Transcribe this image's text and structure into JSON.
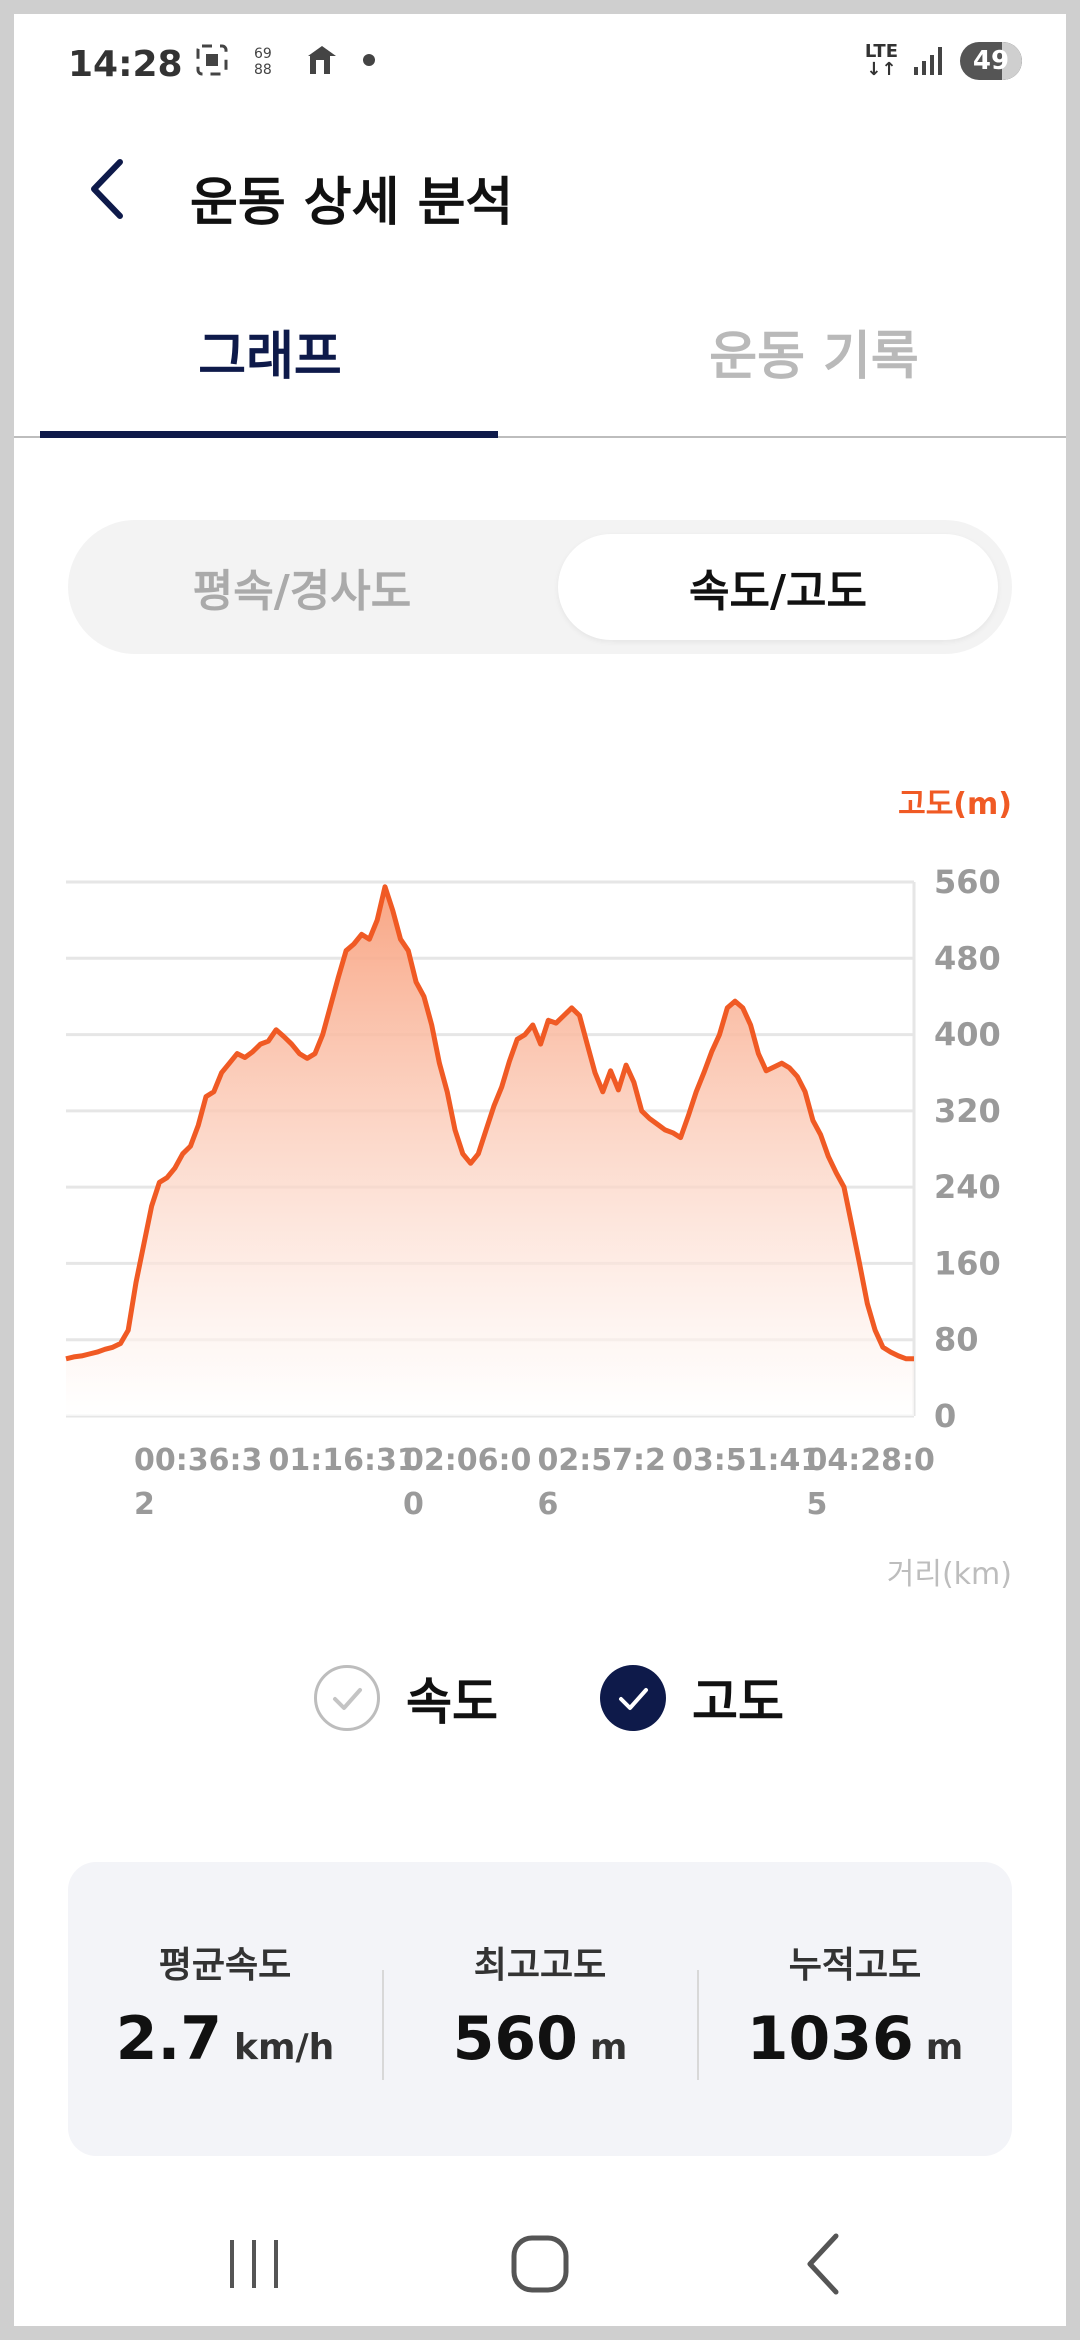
{
  "status_bar": {
    "time": "14:28",
    "network": "LTE",
    "battery": "49"
  },
  "header": {
    "title": "운동 상세 분석"
  },
  "tabs": [
    {
      "label": "그래프",
      "active": true
    },
    {
      "label": "운동 기록",
      "active": false
    }
  ],
  "segment": {
    "options": [
      "평속/경사도",
      "속도/고도"
    ],
    "selected": "속도/고도"
  },
  "chart_data": {
    "type": "area",
    "series": [
      {
        "name": "고도",
        "color": "#f05a24",
        "values": [
          60,
          62,
          63,
          65,
          67,
          70,
          72,
          76,
          90,
          140,
          180,
          220,
          245,
          250,
          260,
          275,
          283,
          305,
          335,
          340,
          360,
          370,
          380,
          376,
          382,
          390,
          393,
          405,
          398,
          390,
          380,
          375,
          380,
          400,
          430,
          460,
          488,
          495,
          505,
          500,
          520,
          555,
          530,
          500,
          488,
          455,
          440,
          410,
          370,
          340,
          300,
          275,
          265,
          275,
          300,
          325,
          345,
          372,
          395,
          400,
          410,
          390,
          415,
          412,
          420,
          428,
          420,
          390,
          360,
          340,
          362,
          342,
          368,
          350,
          320,
          312,
          306,
          300,
          297,
          292,
          315,
          340,
          360,
          382,
          400,
          428,
          435,
          428,
          410,
          380,
          362,
          366,
          370,
          365,
          356,
          340,
          310,
          295,
          272,
          255,
          240,
          200,
          160,
          118,
          90,
          72,
          67,
          63,
          60,
          60
        ]
      }
    ],
    "ylabel": "고도(m)",
    "xlabel": "거리(km)",
    "ylim": [
      0,
      560
    ],
    "yticks": [
      "560",
      "480",
      "400",
      "320",
      "240",
      "160",
      "80",
      "0"
    ],
    "xtick_labels": [
      {
        "line1": "00:36:3",
        "line2": "2"
      },
      {
        "line1": "01:16:31",
        "line2": ""
      },
      {
        "line1": "02:06:0",
        "line2": "0"
      },
      {
        "line1": "02:57:2",
        "line2": "6"
      },
      {
        "line1": "03:51:41",
        "line2": ""
      },
      {
        "line1": "04:28:0",
        "line2": "5"
      }
    ],
    "grid": true
  },
  "legend": {
    "speed_label": "속도",
    "speed_checked": false,
    "altitude_label": "고도",
    "altitude_checked": true
  },
  "stats": [
    {
      "label": "평균속도",
      "value": "2.7",
      "unit": "km/h"
    },
    {
      "label": "최고고도",
      "value": "560",
      "unit": "m"
    },
    {
      "label": "누적고도",
      "value": "1036",
      "unit": "m"
    }
  ],
  "colors": {
    "accent": "#0e1a4a",
    "series": "#f05a24"
  }
}
